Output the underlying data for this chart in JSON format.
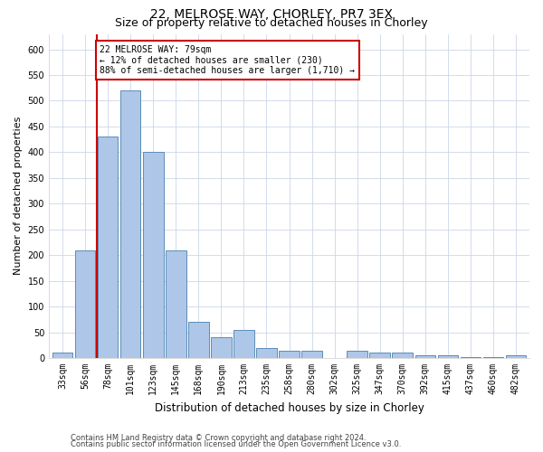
{
  "title1": "22, MELROSE WAY, CHORLEY, PR7 3EX",
  "title2": "Size of property relative to detached houses in Chorley",
  "xlabel": "Distribution of detached houses by size in Chorley",
  "ylabel": "Number of detached properties",
  "categories": [
    "33sqm",
    "56sqm",
    "78sqm",
    "101sqm",
    "123sqm",
    "145sqm",
    "168sqm",
    "190sqm",
    "213sqm",
    "235sqm",
    "258sqm",
    "280sqm",
    "302sqm",
    "325sqm",
    "347sqm",
    "370sqm",
    "392sqm",
    "415sqm",
    "437sqm",
    "460sqm",
    "482sqm"
  ],
  "values": [
    10,
    210,
    430,
    520,
    400,
    210,
    70,
    40,
    55,
    20,
    15,
    15,
    0,
    15,
    10,
    10,
    5,
    5,
    2,
    2,
    5
  ],
  "bar_color": "#aec6e8",
  "bar_edge_color": "#5b8db8",
  "vline_color": "#cc0000",
  "vline_x_index": 2,
  "annotation_text": "22 MELROSE WAY: 79sqm\n← 12% of detached houses are smaller (230)\n88% of semi-detached houses are larger (1,710) →",
  "annotation_box_color": "#ffffff",
  "annotation_box_edge": "#cc0000",
  "ylim": [
    0,
    630
  ],
  "yticks": [
    0,
    50,
    100,
    150,
    200,
    250,
    300,
    350,
    400,
    450,
    500,
    550,
    600
  ],
  "footer1": "Contains HM Land Registry data © Crown copyright and database right 2024.",
  "footer2": "Contains public sector information licensed under the Open Government Licence v3.0.",
  "bg_color": "#ffffff",
  "grid_color": "#ccd6e8",
  "title1_fontsize": 10,
  "title2_fontsize": 9,
  "xlabel_fontsize": 8.5,
  "ylabel_fontsize": 8,
  "tick_fontsize": 7,
  "annot_fontsize": 7,
  "footer_fontsize": 6
}
